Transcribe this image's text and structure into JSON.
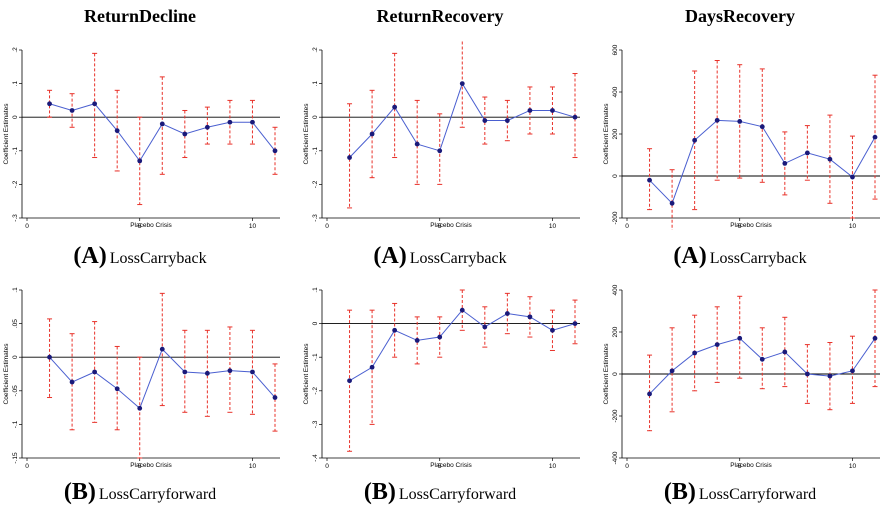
{
  "column_titles": [
    "ReturnDecline",
    "ReturnRecovery",
    "DaysRecovery"
  ],
  "row_captions": [
    {
      "letter": "(A)",
      "text": "LossCarryback"
    },
    {
      "letter": "(B)",
      "text": "LossCarryforward"
    }
  ],
  "colors": {
    "line": "#4a5fd0",
    "point": "#1a1a7a",
    "ci": "#e8322a",
    "zero": "#000000"
  },
  "chart_data": [
    {
      "type": "line",
      "title": "ReturnDecline",
      "panel": "LossCarryback",
      "xlabel": "Placebo Crisis",
      "ylabel": "Coefficient Estimates",
      "xlim": [
        0,
        11
      ],
      "ylim": [
        -0.3,
        0.2
      ],
      "xticks": [
        0,
        5,
        10
      ],
      "xtick_labels": [
        "0",
        "5",
        "10"
      ],
      "yticks": [
        -0.3,
        -0.2,
        -0.1,
        0,
        0.1,
        0.2
      ],
      "ytick_labels": [
        "-.3",
        "-.2",
        "-.1",
        "0",
        ".1",
        ".2"
      ],
      "x": [
        1,
        2,
        3,
        4,
        5,
        6,
        7,
        8,
        9,
        10,
        11
      ],
      "values": [
        0.04,
        0.02,
        0.04,
        -0.04,
        -0.13,
        -0.02,
        -0.05,
        -0.03,
        -0.015,
        -0.015,
        -0.1
      ],
      "ci_low": [
        0.0,
        -0.03,
        -0.12,
        -0.16,
        -0.26,
        -0.17,
        -0.12,
        -0.08,
        -0.08,
        -0.08,
        -0.17
      ],
      "ci_high": [
        0.08,
        0.07,
        0.19,
        0.08,
        0.0,
        0.12,
        0.02,
        0.03,
        0.05,
        0.05,
        -0.03
      ]
    },
    {
      "type": "line",
      "title": "ReturnRecovery",
      "panel": "LossCarryback",
      "xlabel": "Placebo Crisis",
      "ylabel": "Coefficient Estimates",
      "xlim": [
        0,
        11
      ],
      "ylim": [
        -0.3,
        0.2
      ],
      "xticks": [
        0,
        5,
        10
      ],
      "xtick_labels": [
        "0",
        "5",
        "10"
      ],
      "yticks": [
        -0.3,
        -0.2,
        -0.1,
        0,
        0.1,
        0.2
      ],
      "ytick_labels": [
        "-.3",
        "-.2",
        "-.1",
        "0",
        ".1",
        ".2"
      ],
      "x": [
        1,
        2,
        3,
        4,
        5,
        6,
        7,
        8,
        9,
        10,
        11
      ],
      "values": [
        -0.12,
        -0.05,
        0.03,
        -0.08,
        -0.1,
        0.1,
        -0.01,
        -0.01,
        0.02,
        0.02,
        0.0
      ],
      "ci_low": [
        -0.27,
        -0.18,
        -0.12,
        -0.2,
        -0.2,
        -0.03,
        -0.08,
        -0.07,
        -0.05,
        -0.05,
        -0.12
      ],
      "ci_high": [
        0.04,
        0.08,
        0.19,
        0.05,
        0.01,
        0.24,
        0.06,
        0.05,
        0.09,
        0.09,
        0.13
      ]
    },
    {
      "type": "line",
      "title": "DaysRecovery",
      "panel": "LossCarryback",
      "xlabel": "Placebo Crisis",
      "ylabel": "Coefficient Estimates",
      "xlim": [
        0,
        11
      ],
      "ylim": [
        -200,
        600
      ],
      "xticks": [
        0,
        5,
        10
      ],
      "xtick_labels": [
        "0",
        "5",
        "10"
      ],
      "yticks": [
        -200,
        0,
        200,
        400,
        600
      ],
      "ytick_labels": [
        "-200",
        "0",
        "200",
        "400",
        "600"
      ],
      "x": [
        1,
        2,
        3,
        4,
        5,
        6,
        7,
        8,
        9,
        10,
        11
      ],
      "values": [
        -20,
        -130,
        170,
        265,
        260,
        235,
        60,
        110,
        80,
        -5,
        185
      ],
      "ci_low": [
        -160,
        -290,
        -160,
        -20,
        -10,
        -30,
        -90,
        -20,
        -130,
        -200,
        -110
      ],
      "ci_high": [
        130,
        30,
        500,
        550,
        530,
        510,
        210,
        240,
        290,
        190,
        480
      ]
    },
    {
      "type": "line",
      "title": "ReturnDecline",
      "panel": "LossCarryforward",
      "xlabel": "Placebo Crisis",
      "ylabel": "Coefficient Estimates",
      "xlim": [
        0,
        11
      ],
      "ylim": [
        -0.15,
        0.1
      ],
      "xticks": [
        0,
        5,
        10
      ],
      "xtick_labels": [
        "0",
        "5",
        "10"
      ],
      "yticks": [
        -0.15,
        -0.1,
        -0.05,
        0,
        0.05,
        0.1
      ],
      "ytick_labels": [
        "-.15",
        "-.1",
        "-.05",
        "0",
        ".05",
        ".1"
      ],
      "x": [
        1,
        2,
        3,
        4,
        5,
        6,
        7,
        8,
        9,
        10,
        11
      ],
      "values": [
        0.0,
        -0.037,
        -0.022,
        -0.047,
        -0.076,
        0.012,
        -0.022,
        -0.024,
        -0.02,
        -0.022,
        -0.06
      ],
      "ci_low": [
        -0.06,
        -0.108,
        -0.097,
        -0.108,
        -0.15,
        -0.072,
        -0.082,
        -0.088,
        -0.082,
        -0.085,
        -0.11
      ],
      "ci_high": [
        0.057,
        0.035,
        0.053,
        0.016,
        0.0,
        0.095,
        0.04,
        0.04,
        0.045,
        0.04,
        -0.01
      ]
    },
    {
      "type": "line",
      "title": "ReturnRecovery",
      "panel": "LossCarryforward",
      "xlabel": "Placebo Crisis",
      "ylabel": "Coefficient Estimates",
      "xlim": [
        0,
        11
      ],
      "ylim": [
        -0.4,
        0.1
      ],
      "xticks": [
        0,
        5,
        10
      ],
      "xtick_labels": [
        "0",
        "5",
        "10"
      ],
      "yticks": [
        -0.4,
        -0.3,
        -0.2,
        -0.1,
        0,
        0.1
      ],
      "ytick_labels": [
        "-.4",
        "-.3",
        "-.2",
        "-.1",
        "0",
        ".1"
      ],
      "x": [
        1,
        2,
        3,
        4,
        5,
        6,
        7,
        8,
        9,
        10,
        11
      ],
      "values": [
        -0.17,
        -0.13,
        -0.02,
        -0.05,
        -0.04,
        0.04,
        -0.01,
        0.03,
        0.02,
        -0.02,
        0.0
      ],
      "ci_low": [
        -0.38,
        -0.3,
        -0.1,
        -0.12,
        -0.1,
        -0.02,
        -0.07,
        -0.03,
        -0.04,
        -0.08,
        -0.06
      ],
      "ci_high": [
        0.04,
        0.04,
        0.06,
        0.02,
        0.02,
        0.1,
        0.05,
        0.09,
        0.08,
        0.04,
        0.07
      ]
    },
    {
      "type": "line",
      "title": "DaysRecovery",
      "panel": "LossCarryforward",
      "xlabel": "Placebo Crisis",
      "ylabel": "Coefficient Estimates",
      "xlim": [
        0,
        11
      ],
      "ylim": [
        -400,
        400
      ],
      "xticks": [
        0,
        5,
        10
      ],
      "xtick_labels": [
        "0",
        "5",
        "10"
      ],
      "yticks": [
        -400,
        -200,
        0,
        200,
        400
      ],
      "ytick_labels": [
        "-400",
        "-200",
        "0",
        "200",
        "400"
      ],
      "x": [
        1,
        2,
        3,
        4,
        5,
        6,
        7,
        8,
        9,
        10,
        11
      ],
      "values": [
        -95,
        15,
        100,
        140,
        170,
        70,
        105,
        0,
        -10,
        15,
        170
      ],
      "ci_low": [
        -270,
        -180,
        -80,
        -40,
        -20,
        -70,
        -60,
        -140,
        -170,
        -140,
        -60
      ],
      "ci_high": [
        90,
        220,
        280,
        320,
        370,
        220,
        270,
        140,
        150,
        180,
        400
      ]
    }
  ]
}
